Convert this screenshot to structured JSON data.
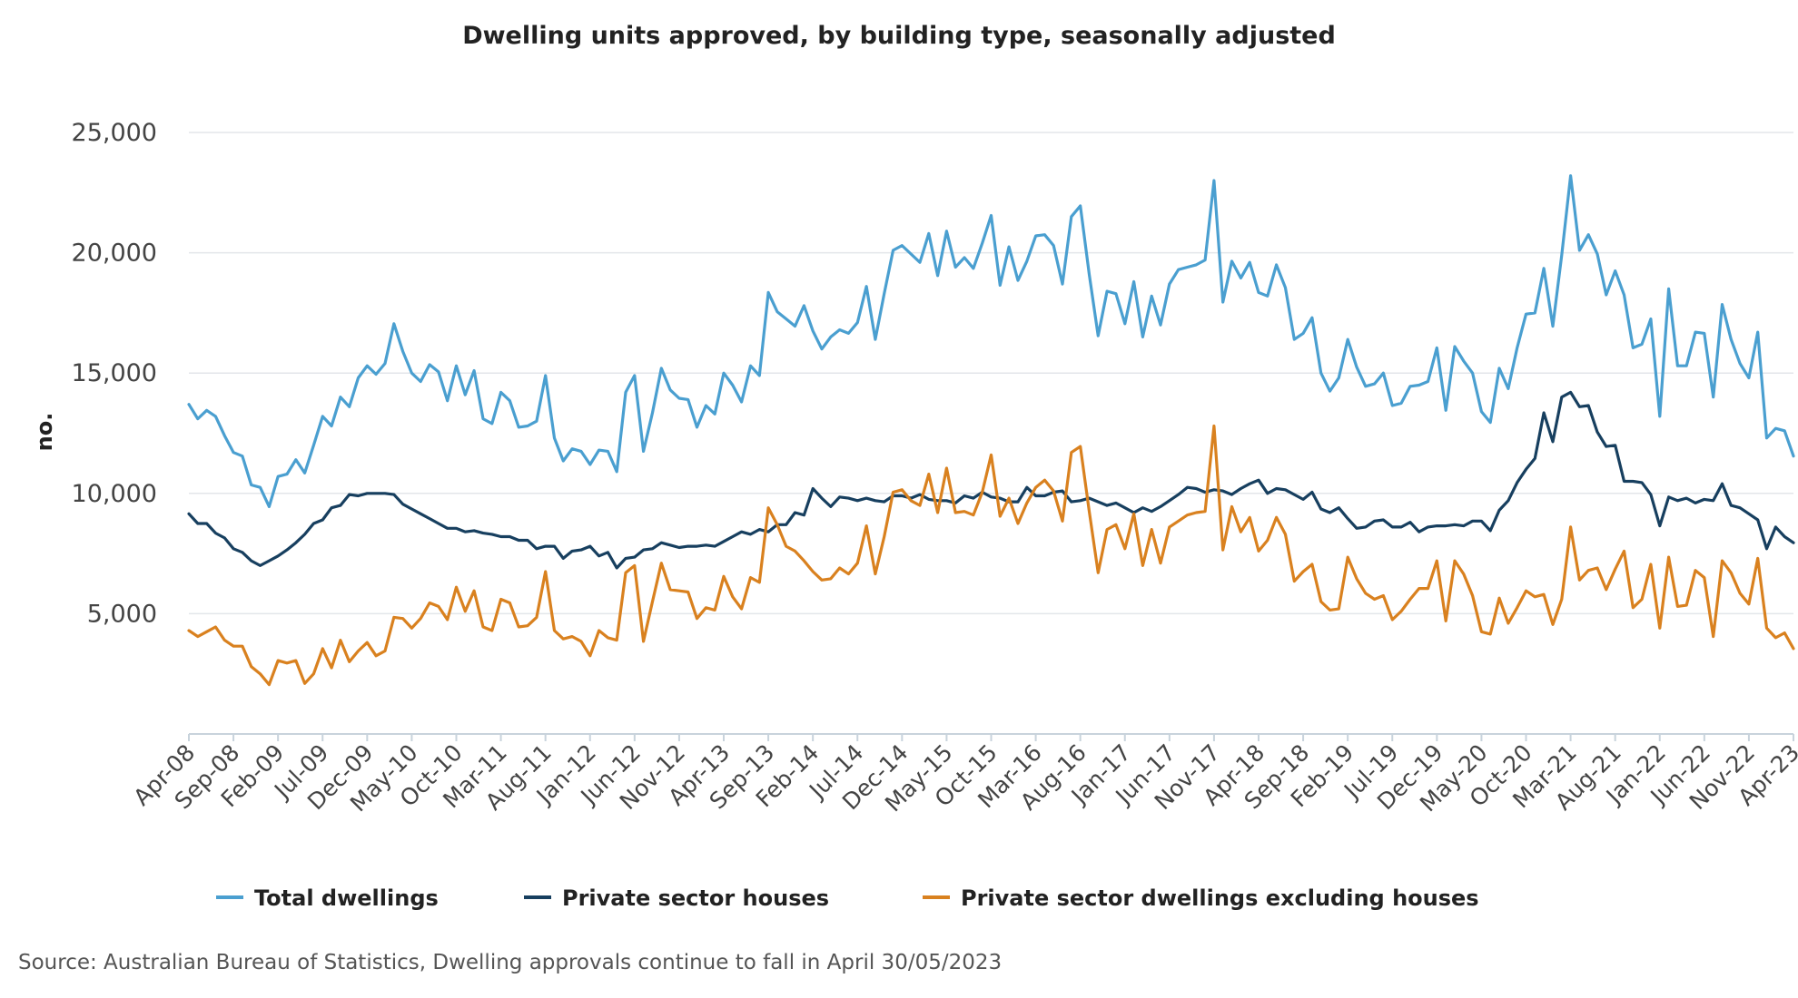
{
  "chart_data": {
    "type": "line",
    "title": "Dwelling units approved, by building type, seasonally adjusted",
    "ylabel": "no.",
    "xlabel": "",
    "ylim": [
      0,
      25000
    ],
    "y_ticks": [
      5000,
      10000,
      15000,
      20000,
      25000
    ],
    "y_tick_labels": [
      "5,000",
      "10,000",
      "15,000",
      "20,000",
      "25,000"
    ],
    "x_start": "Apr-08",
    "x_end": "Apr-23",
    "x_tick_labels": [
      "Apr-08",
      "Sep-08",
      "Feb-09",
      "Jul-09",
      "Dec-09",
      "May-10",
      "Oct-10",
      "Mar-11",
      "Aug-11",
      "Jan-12",
      "Jun-12",
      "Nov-12",
      "Apr-13",
      "Sep-13",
      "Feb-14",
      "Jul-14",
      "Dec-14",
      "May-15",
      "Oct-15",
      "Mar-16",
      "Aug-16",
      "Jan-17",
      "Jun-17",
      "Nov-17",
      "Apr-18",
      "Sep-18",
      "Feb-19",
      "Jul-19",
      "Dec-19",
      "May-20",
      "Oct-20",
      "Mar-21",
      "Aug-21",
      "Jan-22",
      "Jun-22",
      "Nov-22",
      "Apr-23"
    ],
    "grid": true,
    "legend_position": "bottom",
    "series": [
      {
        "name": "Total dwellings",
        "color": "#4a9fd0",
        "values": [
          13700,
          13100,
          13450,
          13200,
          12400,
          11700,
          11550,
          10350,
          10250,
          9450,
          10700,
          10800,
          11400,
          10850,
          12000,
          13200,
          12800,
          14000,
          13600,
          14800,
          15300,
          14950,
          15400,
          17050,
          15900,
          15000,
          14650,
          15350,
          15050,
          13850,
          15300,
          14100,
          15100,
          13100,
          12900,
          14200,
          13850,
          12750,
          12800,
          13000,
          14900,
          12300,
          11350,
          11850,
          11750,
          11200,
          11800,
          11750,
          10900,
          14200,
          14900,
          11750,
          13350,
          15200,
          14300,
          13950,
          13900,
          12750,
          13650,
          13300,
          15000,
          14500,
          13800,
          15300,
          14900,
          18350,
          17550,
          17250,
          16950,
          17800,
          16750,
          16000,
          16500,
          16800,
          16650,
          17100,
          18600,
          16400,
          18300,
          20100,
          20300,
          19950,
          19600,
          20800,
          19050,
          20900,
          19400,
          19800,
          19350,
          20400,
          21550,
          18650,
          20250,
          18850,
          19650,
          20700,
          20750,
          20300,
          18700,
          21500,
          21950,
          19100,
          16550,
          18400,
          18300,
          17050,
          18800,
          16500,
          18200,
          17000,
          18700,
          19300,
          19400,
          19500,
          19700,
          23000,
          17950,
          19650,
          18950,
          19600,
          18350,
          18200,
          19500,
          18550,
          16400,
          16650,
          17300,
          15000,
          14250,
          14800,
          16400,
          15250,
          14450,
          14550,
          15000,
          13650,
          13750,
          14450,
          14500,
          14650,
          16050,
          13450,
          16100,
          15500,
          15000,
          13400,
          12950,
          15200,
          14350,
          16050,
          17450,
          17500,
          19350,
          16950,
          19900,
          23200,
          20100,
          20750,
          19950,
          18250,
          19250,
          18250,
          16050,
          16200,
          17250,
          13200,
          18500,
          15300,
          15300,
          16700,
          16650,
          14000,
          17850,
          16400,
          15400,
          14800,
          16700,
          12300,
          12700,
          12600,
          11550
        ]
      },
      {
        "name": "Private sector houses",
        "color": "#173f5f",
        "values": [
          9150,
          8750,
          8750,
          8350,
          8150,
          7700,
          7550,
          7200,
          7000,
          7200,
          7400,
          7650,
          7950,
          8300,
          8750,
          8900,
          9400,
          9500,
          9950,
          9900,
          10000,
          10000,
          10000,
          9950,
          9550,
          9350,
          9150,
          8950,
          8750,
          8550,
          8550,
          8400,
          8450,
          8350,
          8300,
          8200,
          8200,
          8050,
          8050,
          7700,
          7800,
          7800,
          7300,
          7600,
          7650,
          7800,
          7400,
          7550,
          6900,
          7300,
          7350,
          7650,
          7700,
          7950,
          7850,
          7750,
          7800,
          7800,
          7850,
          7800,
          8000,
          8200,
          8400,
          8300,
          8500,
          8400,
          8700,
          8700,
          9200,
          9100,
          10200,
          9800,
          9450,
          9850,
          9800,
          9700,
          9800,
          9700,
          9650,
          9900,
          9900,
          9800,
          9950,
          9750,
          9700,
          9700,
          9600,
          9900,
          9800,
          10050,
          9850,
          9800,
          9650,
          9650,
          10250,
          9900,
          9900,
          10050,
          10100,
          9650,
          9700,
          9800,
          9650,
          9500,
          9600,
          9400,
          9200,
          9400,
          9250,
          9450,
          9700,
          9950,
          10250,
          10200,
          10050,
          10150,
          10100,
          9950,
          10200,
          10400,
          10550,
          10000,
          10200,
          10150,
          9950,
          9750,
          10050,
          9350,
          9200,
          9400,
          8950,
          8550,
          8600,
          8850,
          8900,
          8600,
          8600,
          8800,
          8400,
          8600,
          8650,
          8650,
          8700,
          8650,
          8850,
          8850,
          8450,
          9300,
          9700,
          10450,
          11000,
          11450,
          13350,
          12150,
          14000,
          14200,
          13600,
          13650,
          12550,
          11950,
          12000,
          10500,
          10500,
          10450,
          9950,
          8650,
          9850,
          9700,
          9800,
          9600,
          9750,
          9700,
          10400,
          9500,
          9400,
          9150,
          8900,
          7700,
          8600,
          8200,
          7950
        ]
      },
      {
        "name": "Private sector dwellings excluding houses",
        "color": "#d9811f",
        "values": [
          4300,
          4050,
          4250,
          4450,
          3900,
          3650,
          3650,
          2800,
          2500,
          2050,
          3050,
          2950,
          3050,
          2100,
          2500,
          3550,
          2750,
          3900,
          3000,
          3450,
          3800,
          3250,
          3450,
          4850,
          4800,
          4400,
          4800,
          5450,
          5300,
          4750,
          6100,
          5100,
          5950,
          4450,
          4300,
          5600,
          5450,
          4450,
          4500,
          4850,
          6750,
          4300,
          3950,
          4050,
          3850,
          3250,
          4300,
          4000,
          3900,
          6700,
          7000,
          3850,
          5500,
          7100,
          6000,
          5950,
          5900,
          4800,
          5250,
          5150,
          6550,
          5700,
          5200,
          6500,
          6300,
          9400,
          8700,
          7800,
          7600,
          7200,
          6750,
          6400,
          6450,
          6900,
          6650,
          7100,
          8650,
          6650,
          8200,
          10050,
          10150,
          9700,
          9500,
          10800,
          9200,
          11050,
          9200,
          9250,
          9100,
          10050,
          11600,
          9050,
          9800,
          8750,
          9600,
          10250,
          10550,
          10100,
          8850,
          11700,
          11950,
          9250,
          6700,
          8500,
          8700,
          7700,
          9150,
          7000,
          8500,
          7100,
          8600,
          8850,
          9100,
          9200,
          9250,
          12800,
          7650,
          9450,
          8400,
          9000,
          7600,
          8050,
          9000,
          8300,
          6350,
          6750,
          7050,
          5500,
          5150,
          5200,
          7350,
          6450,
          5850,
          5600,
          5750,
          4750,
          5100,
          5600,
          6050,
          6050,
          7200,
          4700,
          7200,
          6650,
          5750,
          4250,
          4150,
          5650,
          4600,
          5250,
          5950,
          5700,
          5800,
          4550,
          5600,
          8600,
          6400,
          6800,
          6900,
          6000,
          6850,
          7600,
          5250,
          5600,
          7050,
          4400,
          7350,
          5300,
          5350,
          6800,
          6500,
          4050,
          7200,
          6700,
          5850,
          5400,
          7300,
          4400,
          4000,
          4200,
          3550
        ]
      }
    ]
  },
  "source": "Source: Australian Bureau of Statistics, Dwelling approvals continue to fall in April 30/05/2023"
}
